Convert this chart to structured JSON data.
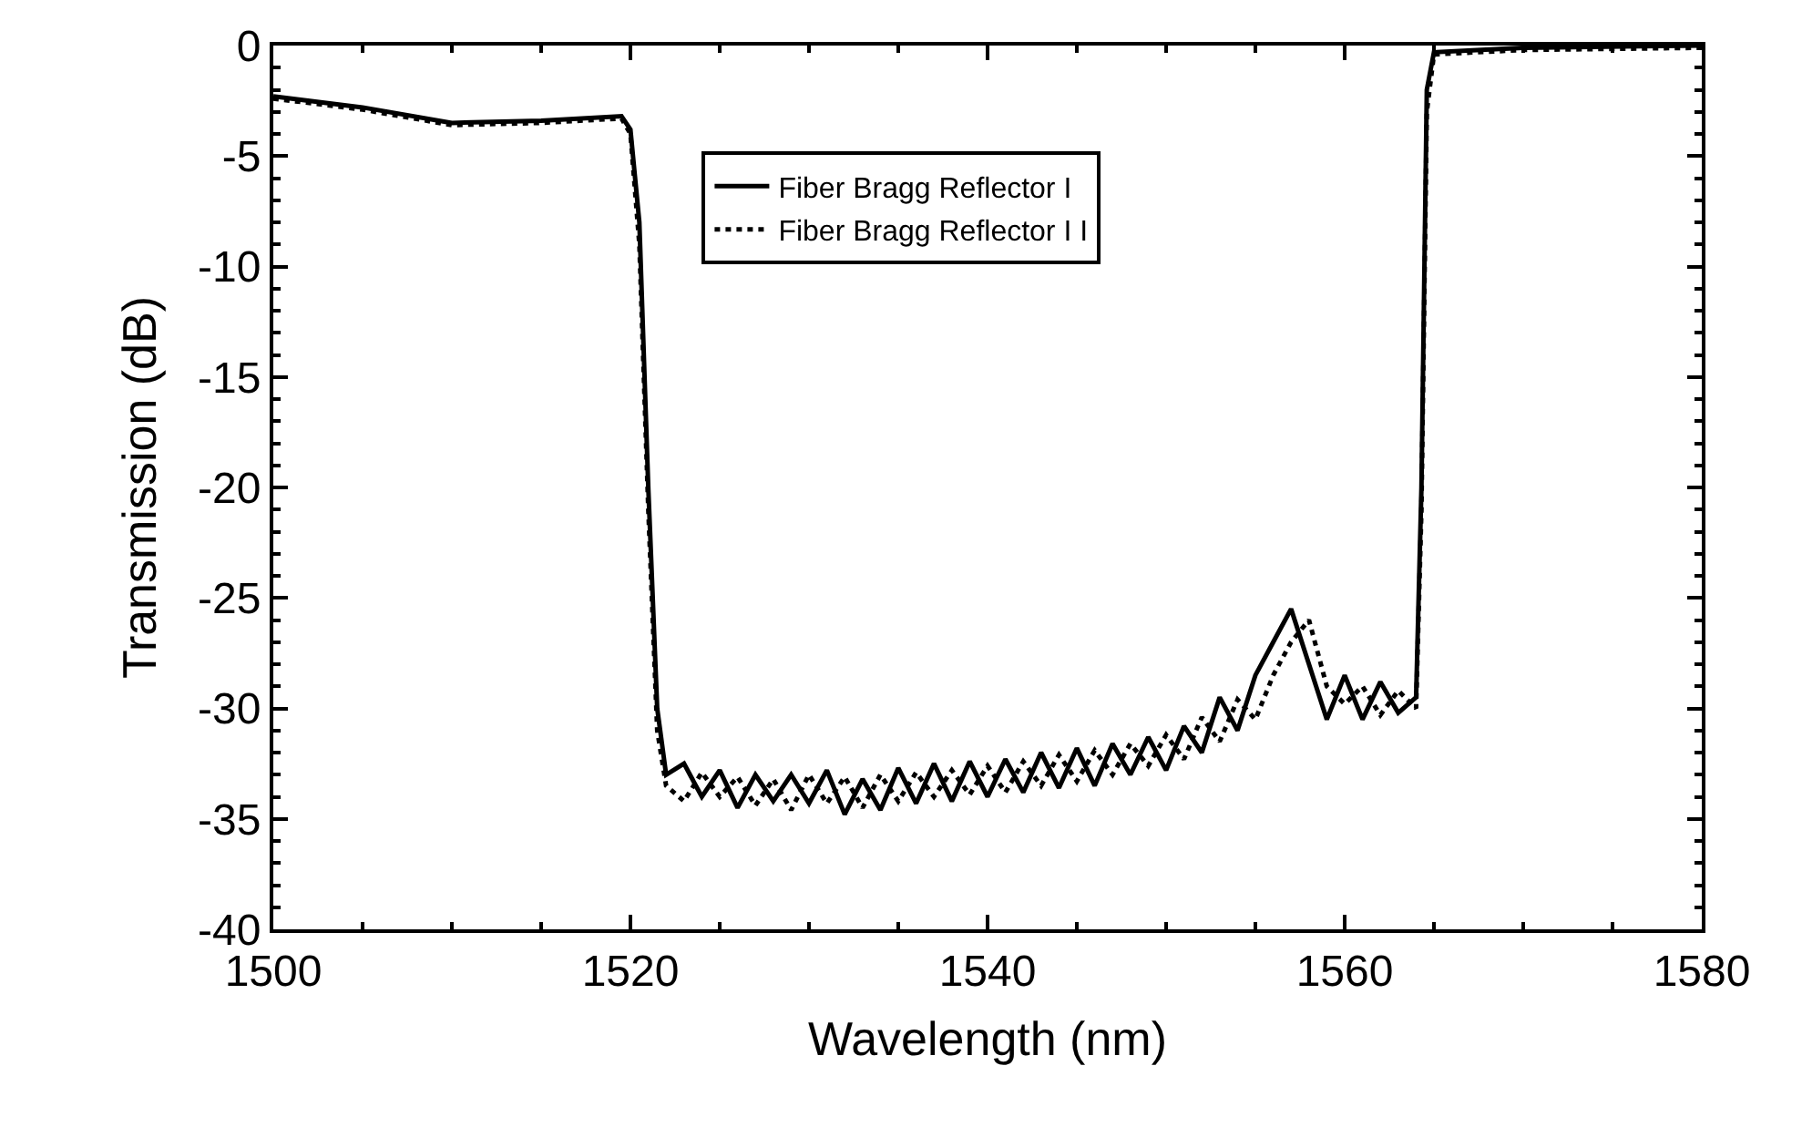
{
  "chart_data": {
    "type": "line",
    "xlabel": "Wavelength (nm)",
    "ylabel": "Transmission (dB)",
    "xlim": [
      1500,
      1580
    ],
    "xticks": [
      1500,
      1520,
      1540,
      1560,
      1580
    ],
    "ylim": [
      -40,
      0
    ],
    "yticks": [
      -40,
      -35,
      -30,
      -25,
      -20,
      -15,
      -10,
      -5,
      0
    ],
    "legend": "top",
    "marker": "none",
    "series": [
      {
        "name": "Fiber Bragg Reflector I",
        "color": "#000000",
        "line_style": "solid",
        "x": [
          1500,
          1505,
          1510,
          1515,
          1519.5,
          1520,
          1520.5,
          1521,
          1521.5,
          1522,
          1523,
          1524,
          1525,
          1526,
          1527,
          1528,
          1529,
          1530,
          1531,
          1532,
          1533,
          1534,
          1535,
          1536,
          1537,
          1538,
          1539,
          1540,
          1541,
          1542,
          1543,
          1544,
          1545,
          1546,
          1547,
          1548,
          1549,
          1550,
          1551,
          1552,
          1553,
          1554,
          1555,
          1556,
          1557,
          1558,
          1559,
          1560,
          1561,
          1562,
          1563,
          1564,
          1564.3,
          1564.6,
          1565,
          1570,
          1580
        ],
        "values": [
          -2.3,
          -2.8,
          -3.5,
          -3.4,
          -3.2,
          -3.8,
          -8,
          -20,
          -30,
          -33,
          -32.5,
          -34,
          -32.8,
          -34.5,
          -33,
          -34.2,
          -33,
          -34.3,
          -32.8,
          -34.8,
          -33.2,
          -34.6,
          -32.7,
          -34.3,
          -32.5,
          -34.2,
          -32.4,
          -34,
          -32.3,
          -33.8,
          -32,
          -33.6,
          -31.8,
          -33.5,
          -31.6,
          -33,
          -31.3,
          -32.8,
          -30.8,
          -32,
          -29.5,
          -31,
          -28.5,
          -27,
          -25.5,
          -28,
          -30.5,
          -28.5,
          -30.5,
          -28.8,
          -30.2,
          -29.5,
          -20,
          -2,
          -0.3,
          -0.1,
          0
        ]
      },
      {
        "name": "Fiber Bragg Reflector I I",
        "color": "#000000",
        "line_style": "dotted",
        "x": [
          1500,
          1505,
          1510,
          1515,
          1519.5,
          1520,
          1520.5,
          1521,
          1521.5,
          1522,
          1523,
          1524,
          1525,
          1526,
          1527,
          1528,
          1529,
          1530,
          1531,
          1532,
          1533,
          1534,
          1535,
          1536,
          1537,
          1538,
          1539,
          1540,
          1541,
          1542,
          1543,
          1544,
          1545,
          1546,
          1547,
          1548,
          1549,
          1550,
          1551,
          1552,
          1553,
          1554,
          1555,
          1556,
          1557,
          1558,
          1559,
          1560,
          1561,
          1562,
          1563,
          1564,
          1564.3,
          1564.6,
          1565,
          1570,
          1580
        ],
        "values": [
          -2.4,
          -2.9,
          -3.6,
          -3.5,
          -3.3,
          -4,
          -9,
          -21,
          -31,
          -33.5,
          -34.2,
          -32.9,
          -34,
          -33.1,
          -34.4,
          -33.2,
          -34.6,
          -33,
          -34.3,
          -33.1,
          -34.5,
          -33,
          -34.2,
          -32.9,
          -34,
          -32.8,
          -33.9,
          -32.6,
          -33.8,
          -32.4,
          -33.5,
          -32.1,
          -33.3,
          -31.9,
          -33,
          -31.6,
          -32.6,
          -31.2,
          -32.3,
          -30.4,
          -31.5,
          -29.6,
          -30.5,
          -28.5,
          -27,
          -26,
          -29,
          -29.8,
          -29,
          -30.3,
          -29.2,
          -30,
          -21,
          -3,
          -0.4,
          -0.2,
          -0.1
        ]
      }
    ]
  }
}
